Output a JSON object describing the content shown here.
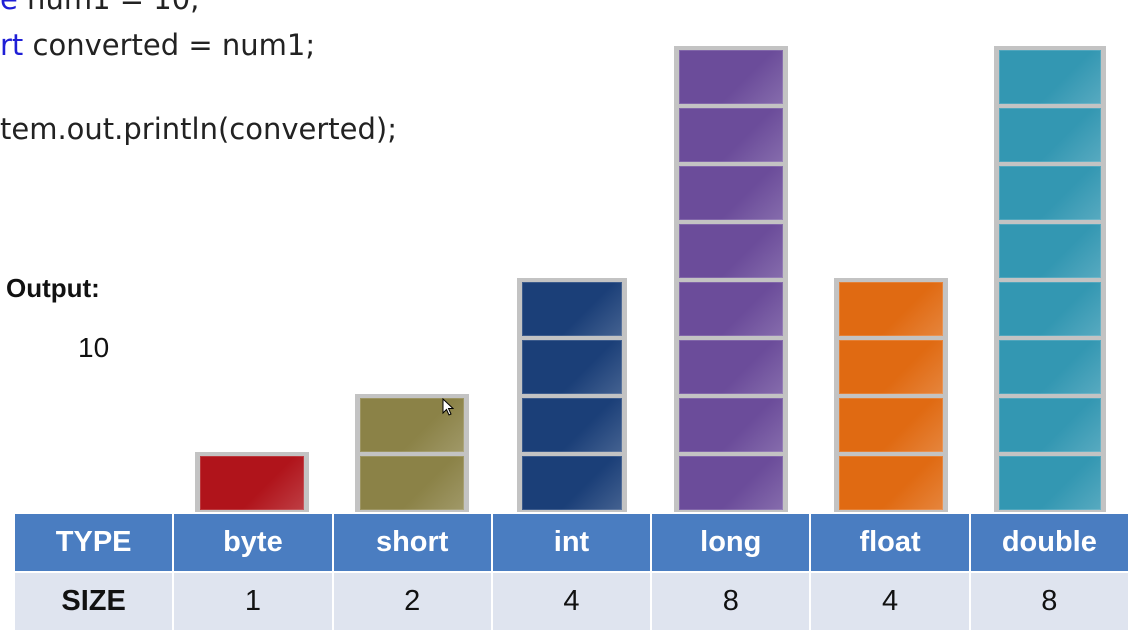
{
  "code": {
    "line_top": "e num1 = 10;",
    "line_decl_kw": "rt",
    "line_decl_rest": " converted = num1;",
    "line_print": "tem.out.println(converted);"
  },
  "output": {
    "label": "Output:",
    "value": "10"
  },
  "table": {
    "type_header": "TYPE",
    "size_header": "SIZE",
    "types": [
      {
        "name": "byte",
        "size": "1",
        "blocks": 1,
        "color": "#b0141b"
      },
      {
        "name": "short",
        "size": "2",
        "blocks": 2,
        "color": "#8b8247"
      },
      {
        "name": "int",
        "size": "4",
        "blocks": 4,
        "color": "#1b3f78"
      },
      {
        "name": "long",
        "size": "8",
        "blocks": 8,
        "color": "#6b4c9a"
      },
      {
        "name": "float",
        "size": "4",
        "blocks": 4,
        "color": "#e06a12"
      },
      {
        "name": "double",
        "size": "8",
        "blocks": 8,
        "color": "#3397b2"
      }
    ]
  },
  "colors": {
    "header_bg": "#4a7dc1",
    "row_bg": "#dfe4ef",
    "keyword": "#1f1fd6"
  },
  "icons": {
    "cursor": "mouse-pointer-icon"
  }
}
